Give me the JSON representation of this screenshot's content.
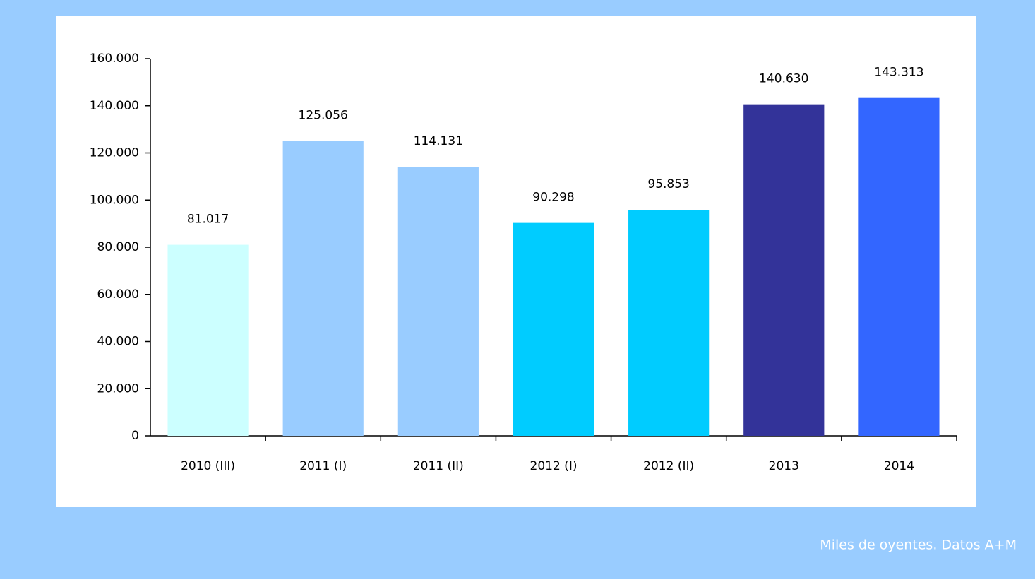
{
  "chart_data": {
    "type": "bar",
    "categories": [
      "2010 (III)",
      "2011 (I)",
      "2011 (II)",
      "2012 (I)",
      "2012 (II)",
      "2013",
      "2014"
    ],
    "values": [
      81017,
      125056,
      114131,
      90298,
      95853,
      140630,
      143313
    ],
    "value_labels": [
      "81.017",
      "125.056",
      "114.131",
      "90.298",
      "95.853",
      "140.630",
      "143.313"
    ],
    "colors": [
      "#ccffff",
      "#99ccff",
      "#99ccff",
      "#00ccff",
      "#00ccff",
      "#333399",
      "#3366ff"
    ],
    "ylim": [
      0,
      160000
    ],
    "yticks": [
      0,
      {
        "value": 20000,
        "label": "20.000"
      },
      {
        "value": 40000,
        "label": "40.000"
      },
      {
        "value": 60000,
        "label": "60.000"
      },
      {
        "value": 80000,
        "label": "80.000"
      },
      {
        "value": 100000,
        "label": "100.000"
      },
      {
        "value": 120000,
        "label": "120.000"
      },
      {
        "value": 140000,
        "label": "140.000"
      },
      {
        "value": 160000,
        "label": "160.000"
      }
    ],
    "grid": false,
    "annotation": "Miles de oyentes. Datos A+M"
  }
}
